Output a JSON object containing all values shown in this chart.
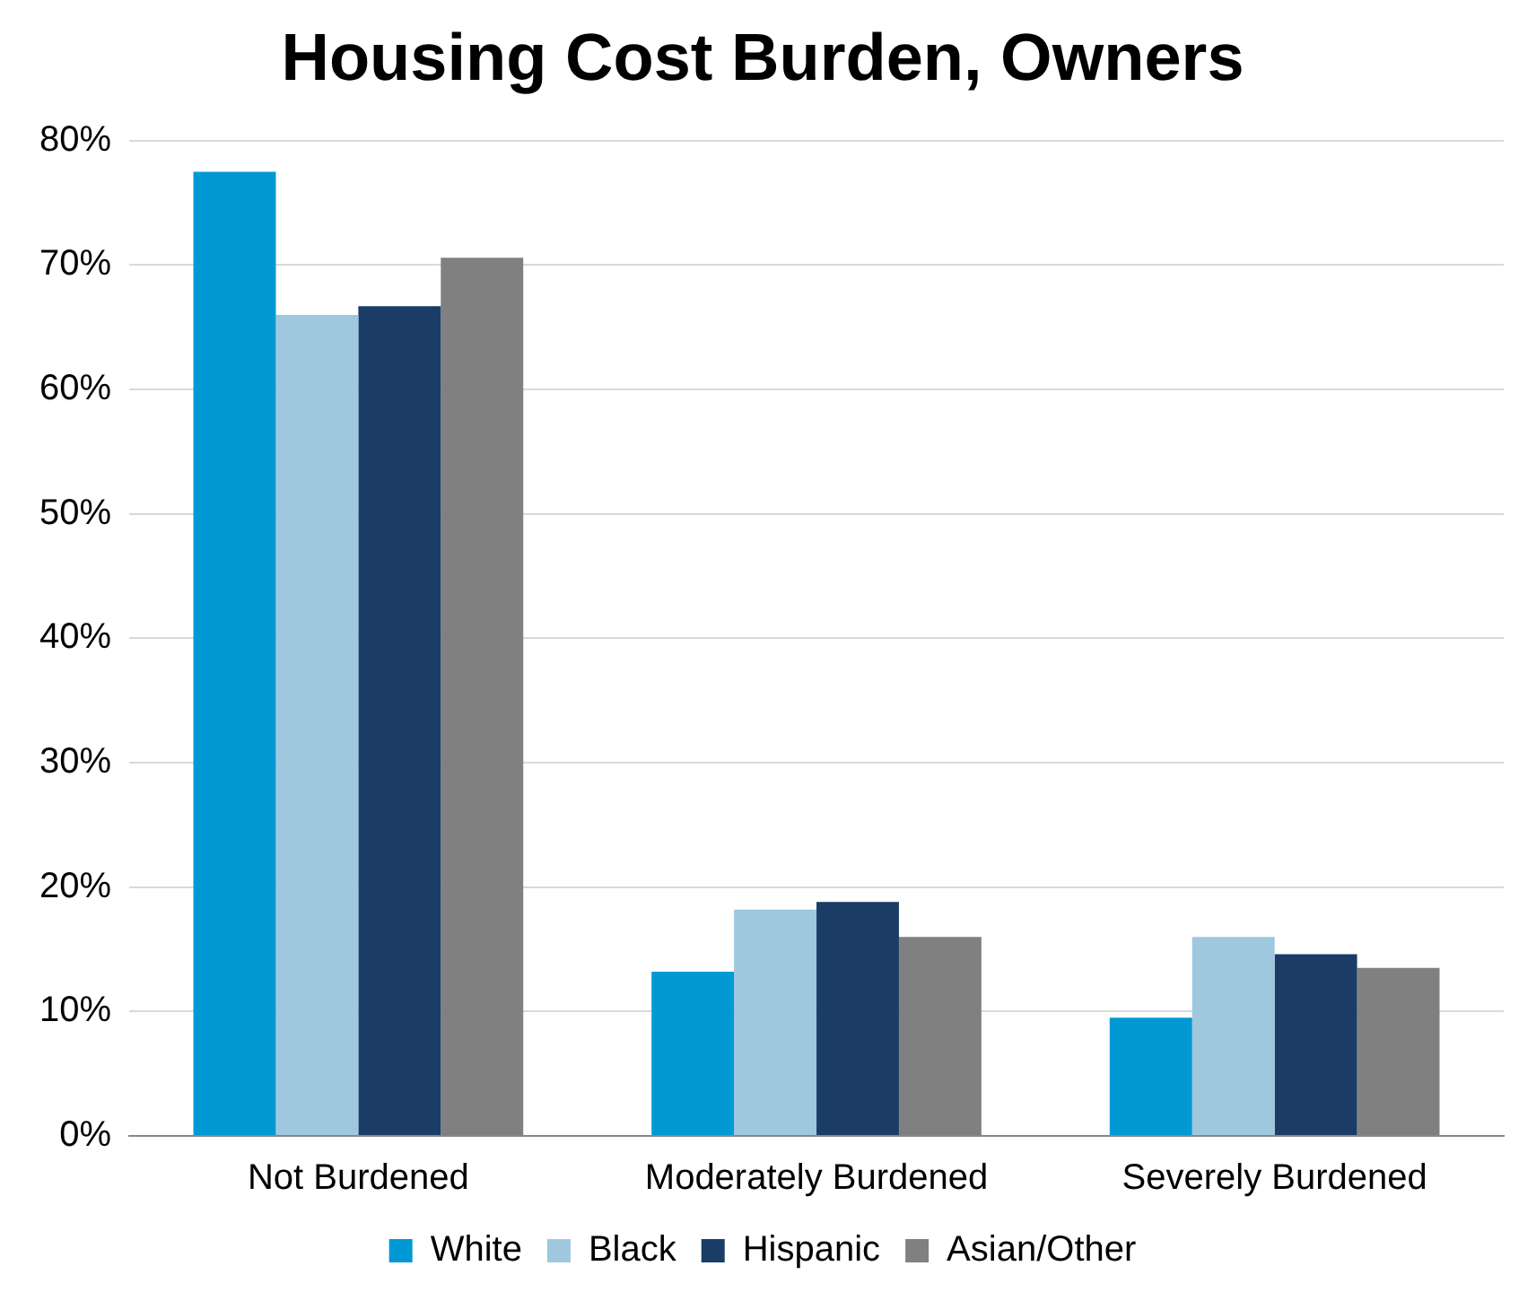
{
  "chart_data": {
    "type": "bar",
    "title": "Housing Cost Burden, Owners",
    "categories": [
      "Not Burdened",
      "Moderately Burdened",
      "Severely Burdened"
    ],
    "series": [
      {
        "name": "White",
        "color": "#0099d4",
        "values": [
          77.5,
          13.2,
          9.5
        ]
      },
      {
        "name": "Black",
        "color": "#9fc8df",
        "values": [
          66.0,
          18.2,
          16.0
        ]
      },
      {
        "name": "Hispanic",
        "color": "#1a3c66",
        "values": [
          66.7,
          18.8,
          14.6
        ]
      },
      {
        "name": "Asian/Other",
        "color": "#808080",
        "values": [
          70.6,
          16.0,
          13.5
        ]
      }
    ],
    "ylim": [
      0,
      80
    ],
    "yticks": [
      {
        "value": 0,
        "label": "0%"
      },
      {
        "value": 10,
        "label": "10%"
      },
      {
        "value": 20,
        "label": "20%"
      },
      {
        "value": 30,
        "label": "30%"
      },
      {
        "value": 40,
        "label": "40%"
      },
      {
        "value": 50,
        "label": "50%"
      },
      {
        "value": 60,
        "label": "60%"
      },
      {
        "value": 70,
        "label": "70%"
      },
      {
        "value": 80,
        "label": "80%"
      }
    ],
    "grid": "y",
    "legend": "bottom"
  }
}
